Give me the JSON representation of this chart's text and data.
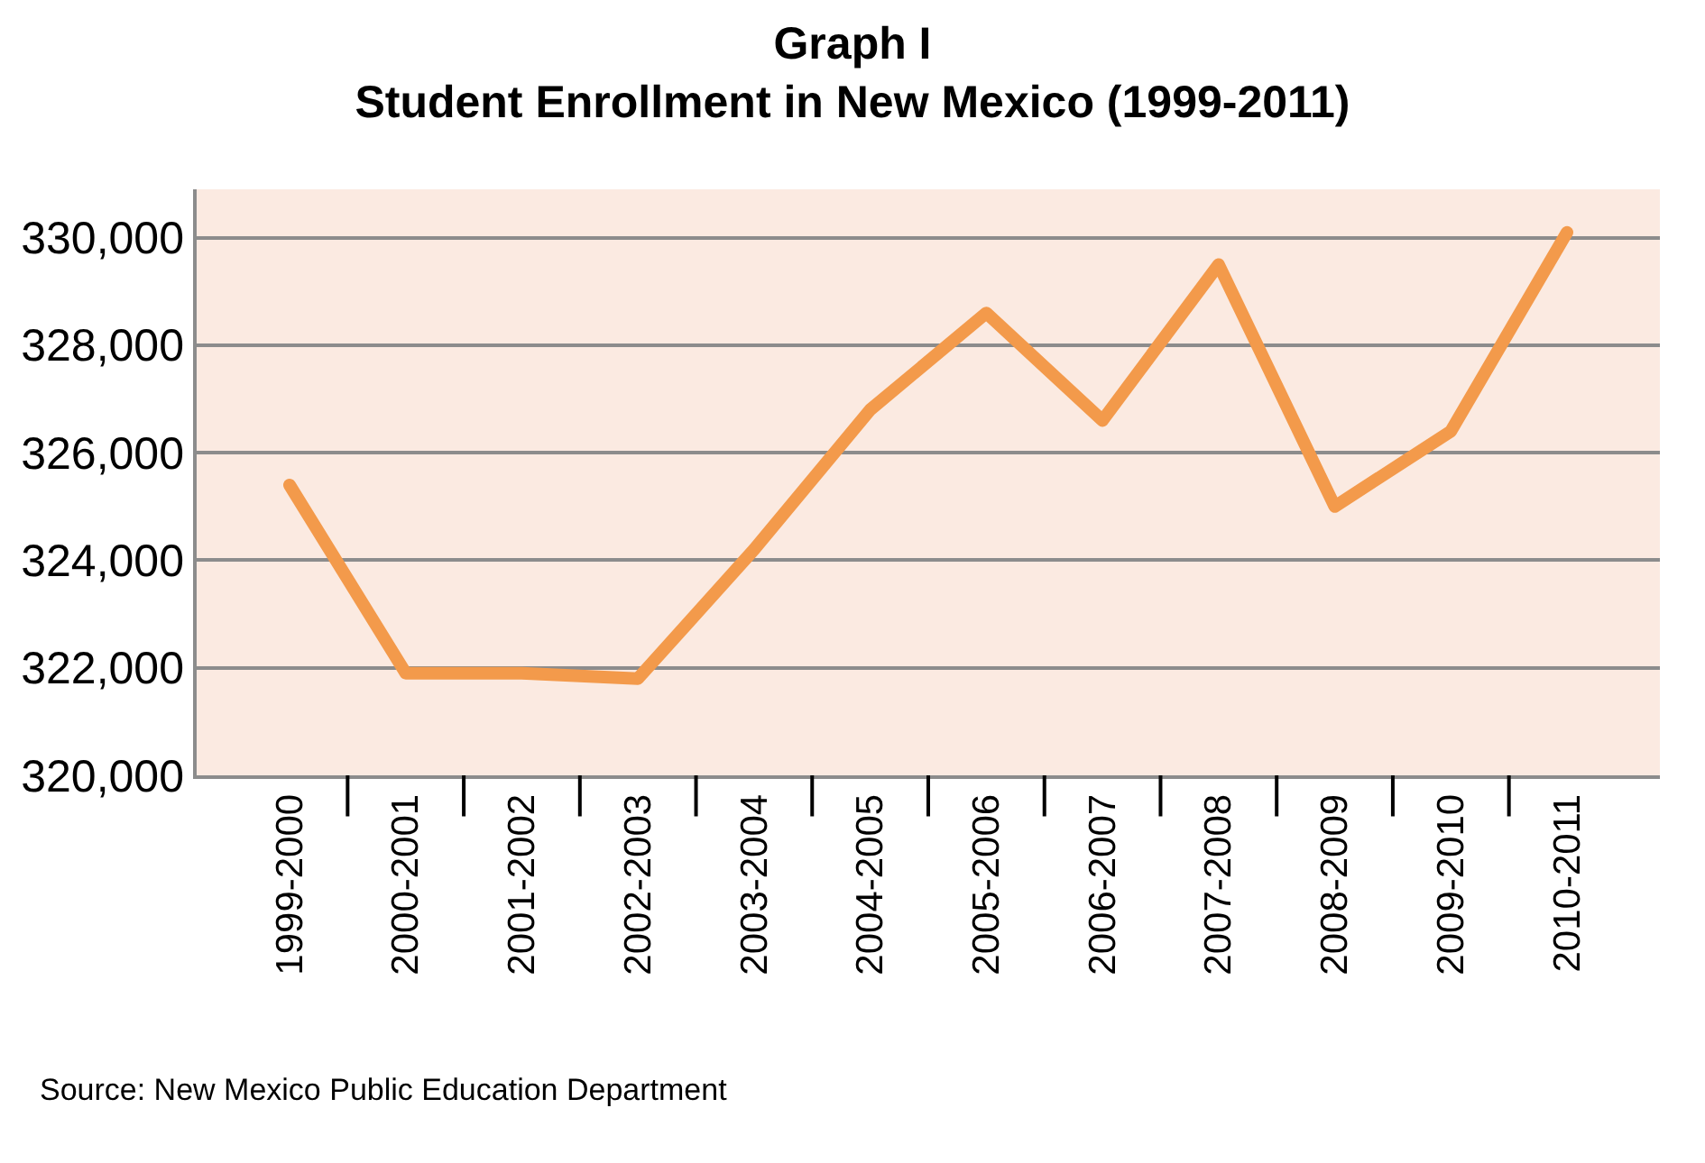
{
  "chart_data": {
    "type": "line",
    "title": "Graph I",
    "subtitle": "Student Enrollment in New Mexico (1999-2011)",
    "categories": [
      "1999-2000",
      "2000-2001",
      "2001-2002",
      "2002-2003",
      "2003-2004",
      "2004-2005",
      "2005-2006",
      "2006-2007",
      "2007-2008",
      "2008-2009",
      "2009-2010",
      "2010-2011"
    ],
    "series": [
      {
        "color": "#f39a4b",
        "values": [
          325400,
          321900,
          321900,
          321800,
          324200,
          326800,
          328600,
          326600,
          329500,
          325000,
          326400,
          330100
        ]
      }
    ],
    "ylim": [
      320000,
      330900
    ],
    "yticks": [
      {
        "value": 320000,
        "label": "320,000"
      },
      {
        "value": 322000,
        "label": "322,000"
      },
      {
        "value": 324000,
        "label": "324,000"
      },
      {
        "value": 326000,
        "label": "326,000"
      },
      {
        "value": 328000,
        "label": "328,000"
      },
      {
        "value": 330000,
        "label": "330,000"
      }
    ],
    "grid": "y",
    "marker": "none",
    "line_style": "solid",
    "annotations": [
      "Source: New Mexico Public Education Department"
    ]
  }
}
